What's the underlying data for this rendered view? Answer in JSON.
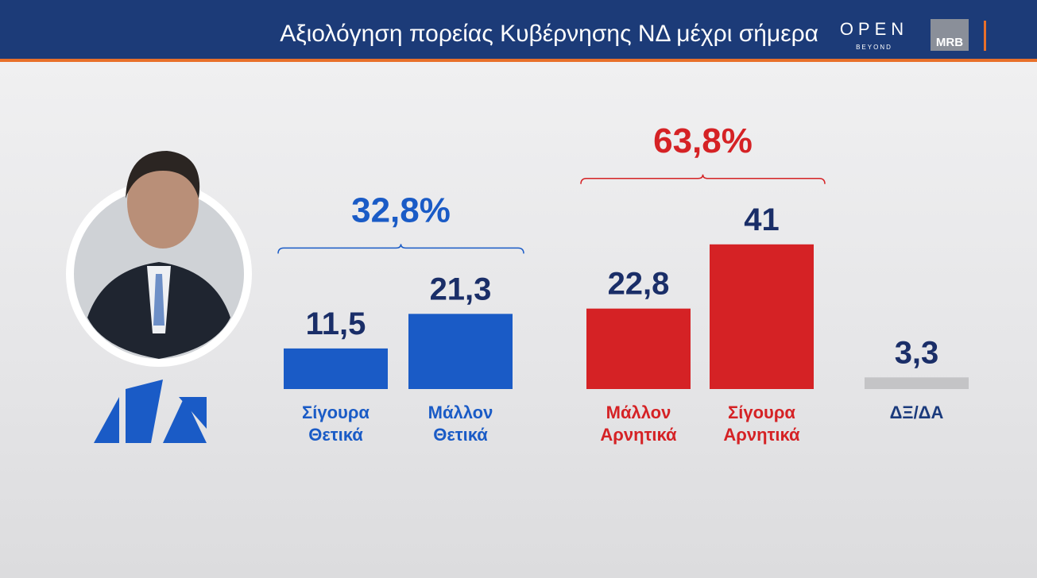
{
  "header": {
    "channel": "OPEN",
    "channel_tagline": "BEYOND",
    "pollster": "MRB"
  },
  "chart_data": {
    "type": "bar",
    "title": "Αξιολόγηση πορείας Κυβέρνησης ΝΔ μέχρι σήμερα",
    "ylim": [
      0,
      45
    ],
    "groups": [
      {
        "label": "32,8%",
        "color": "#1a5bc6",
        "label_color": "#1a5bc6",
        "categories": [
          "Σίγουρα Θετικά",
          "Μάλλον Θετικά"
        ],
        "values": [
          11.5,
          21.3
        ],
        "value_labels": [
          "11,5",
          "21,3"
        ]
      },
      {
        "label": "63,8%",
        "color": "#d52225",
        "label_color": "#d52225",
        "categories": [
          "Μάλλον Αρνητικά",
          "Σίγουρα Αρνητικά"
        ],
        "values": [
          22.8,
          41
        ],
        "value_labels": [
          "22,8",
          "41"
        ]
      },
      {
        "color": "#c4c4c6",
        "label_color": "#1a3a7c",
        "categories": [
          "ΔΞ/ΔΑ"
        ],
        "values": [
          3.3
        ],
        "value_labels": [
          "3,3"
        ]
      }
    ]
  }
}
